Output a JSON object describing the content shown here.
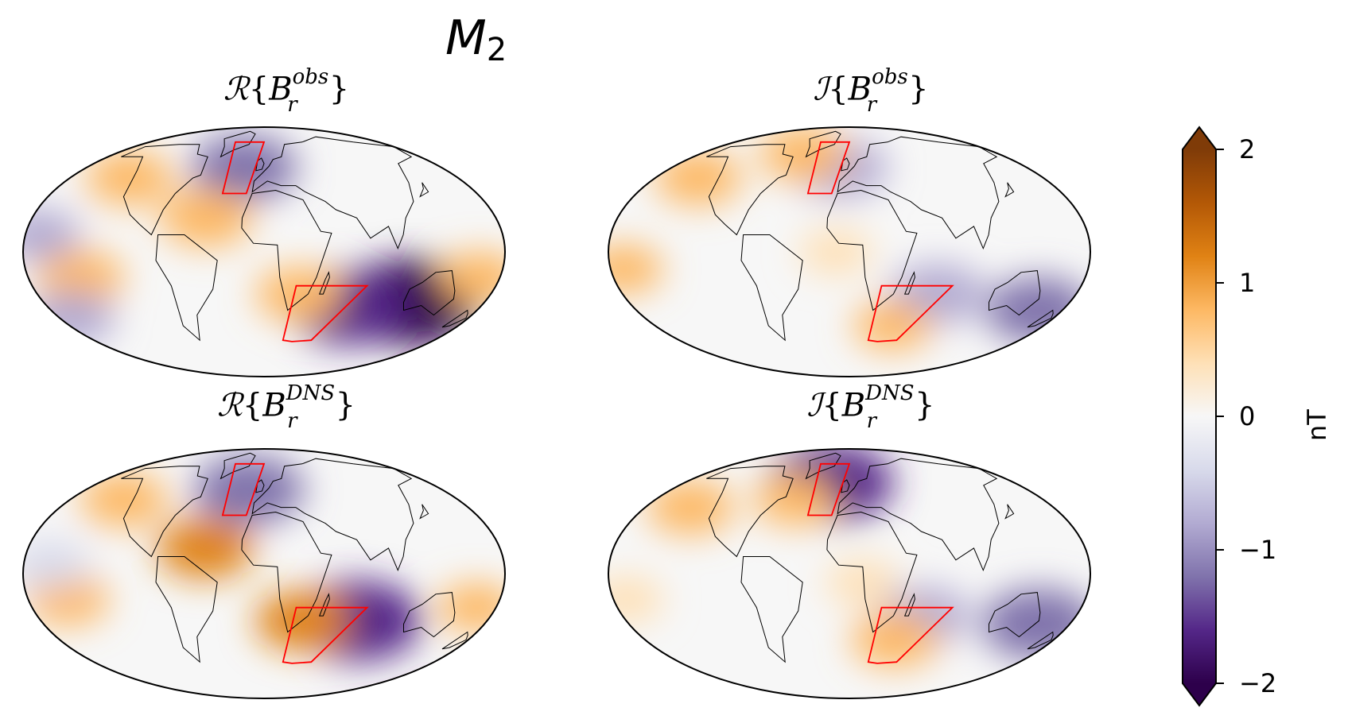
{
  "suptitle": {
    "symbol": "M",
    "subscript": "2"
  },
  "panels": [
    {
      "name": "real-obs",
      "operator": "ℛ",
      "open": "{",
      "field": "B",
      "superscript": "obs",
      "subscript": "r",
      "close": "}"
    },
    {
      "name": "imag-obs",
      "operator": "ℐ",
      "open": "{",
      "field": "B",
      "superscript": "obs",
      "subscript": "r",
      "close": "}"
    },
    {
      "name": "real-dns",
      "operator": "ℛ",
      "open": "{",
      "field": "B",
      "superscript": "DNS",
      "subscript": "r",
      "close": "}"
    },
    {
      "name": "imag-dns",
      "operator": "ℐ",
      "open": "{",
      "field": "B",
      "superscript": "DNS",
      "subscript": "r",
      "close": "}"
    }
  ],
  "colorbar": {
    "label": "nT",
    "ticks": [
      "2",
      "1",
      "0",
      "−1",
      "−2"
    ],
    "tick_values": [
      2,
      1,
      0,
      -1,
      -2
    ],
    "range": [
      -2,
      2
    ],
    "colormap": "PuOr_r",
    "colors": [
      "#2d004b",
      "#542788",
      "#8073ac",
      "#b2abd2",
      "#d8daeb",
      "#f7f7f7",
      "#fee0b6",
      "#fdb863",
      "#e08214",
      "#b35806",
      "#7f3b08"
    ]
  },
  "chart_data": {
    "type": "heatmap",
    "projection": "Mollweide",
    "title": "M2",
    "units": "nT",
    "vmin": -2,
    "vmax": 2,
    "highlight_regions": [
      "North Atlantic box",
      "South-West Indian Ocean box"
    ],
    "region_color": "#ff0000",
    "panels": [
      {
        "title": "Real{Br obs}",
        "features": [
          {
            "lon": -20,
            "lat": 52,
            "value": -1.2
          },
          {
            "lon": 120,
            "lat": -30,
            "value": -1.9
          },
          {
            "lon": 70,
            "lat": -33,
            "value": -1.5
          },
          {
            "lon": 28,
            "lat": -25,
            "value": 0.8
          },
          {
            "lon": -140,
            "lat": -15,
            "value": 0.8
          },
          {
            "lon": -45,
            "lat": 20,
            "value": 0.9
          },
          {
            "lon": -170,
            "lat": 10,
            "value": -0.7
          },
          {
            "lon": -125,
            "lat": 45,
            "value": 0.8
          },
          {
            "lon": -170,
            "lat": -40,
            "value": -0.8
          },
          {
            "lon": 165,
            "lat": -15,
            "value": 0.7
          }
        ]
      },
      {
        "title": "Imag{Br obs}",
        "features": [
          {
            "lon": -10,
            "lat": 52,
            "value": -1.0
          },
          {
            "lon": -55,
            "lat": 62,
            "value": 0.8
          },
          {
            "lon": 70,
            "lat": -25,
            "value": -1.0
          },
          {
            "lon": 160,
            "lat": -35,
            "value": -1.2
          },
          {
            "lon": -140,
            "lat": 45,
            "value": 0.8
          },
          {
            "lon": 40,
            "lat": -45,
            "value": 0.6
          },
          {
            "lon": -10,
            "lat": 0,
            "value": 0.5
          },
          {
            "lon": -170,
            "lat": -10,
            "value": 0.6
          }
        ]
      },
      {
        "title": "Real{Br DNS}",
        "features": [
          {
            "lon": -15,
            "lat": 52,
            "value": -1.3
          },
          {
            "lon": 75,
            "lat": -28,
            "value": -1.7
          },
          {
            "lon": 32,
            "lat": -28,
            "value": 1.0
          },
          {
            "lon": -45,
            "lat": 15,
            "value": 1.0
          },
          {
            "lon": -150,
            "lat": -15,
            "value": 0.7
          },
          {
            "lon": -130,
            "lat": 45,
            "value": 0.8
          },
          {
            "lon": -160,
            "lat": 5,
            "value": -0.6
          },
          {
            "lon": 165,
            "lat": -20,
            "value": 0.6
          }
        ]
      },
      {
        "title": "Imag{Br DNS}",
        "features": [
          {
            "lon": -20,
            "lat": 57,
            "value": -1.6
          },
          {
            "lon": 155,
            "lat": -30,
            "value": -1.4
          },
          {
            "lon": 60,
            "lat": -25,
            "value": -0.9
          },
          {
            "lon": 40,
            "lat": -40,
            "value": 0.8
          },
          {
            "lon": -140,
            "lat": 40,
            "value": 0.8
          },
          {
            "lon": -50,
            "lat": 45,
            "value": 0.7
          },
          {
            "lon": 10,
            "lat": -5,
            "value": 0.5
          },
          {
            "lon": -170,
            "lat": -15,
            "value": 0.5
          }
        ]
      }
    ]
  }
}
